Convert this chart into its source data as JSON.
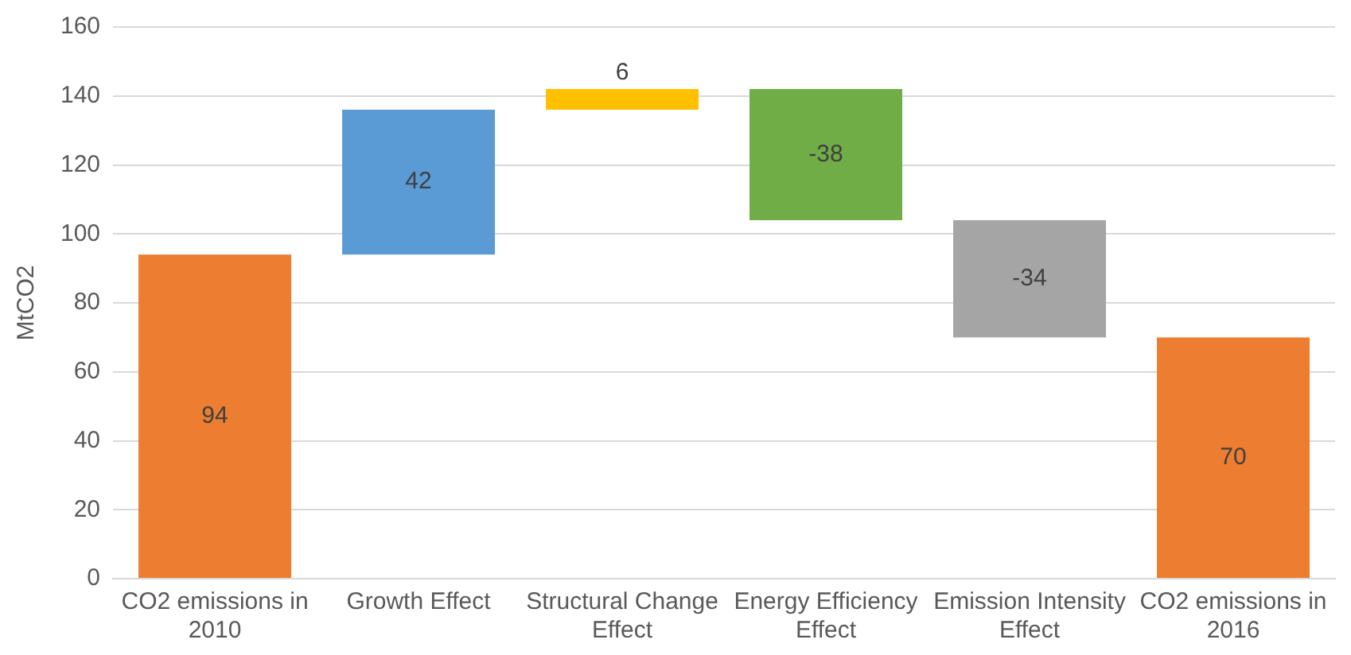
{
  "chart_data": {
    "type": "bar",
    "ylabel": "MtCO2",
    "categories": [
      "CO2 emissions in 2010",
      "Growth Effect",
      "Structural Change Effect",
      "Energy Efficiency Effect",
      "Emission Intensity Effect",
      "CO2 emissions in 2016"
    ],
    "values": [
      94,
      42,
      6,
      -38,
      -34,
      70
    ],
    "base": [
      0,
      94,
      136,
      142,
      104,
      0
    ],
    "colors": [
      "#ed7d31",
      "#5b9bd5",
      "#ffc000",
      "#70ad47",
      "#a5a5a5",
      "#ed7d31"
    ],
    "ylim": [
      0,
      160
    ],
    "yticks": [
      0,
      20,
      40,
      60,
      80,
      100,
      120,
      140,
      160
    ],
    "grid": "y",
    "data_labels": true,
    "legend": false
  }
}
